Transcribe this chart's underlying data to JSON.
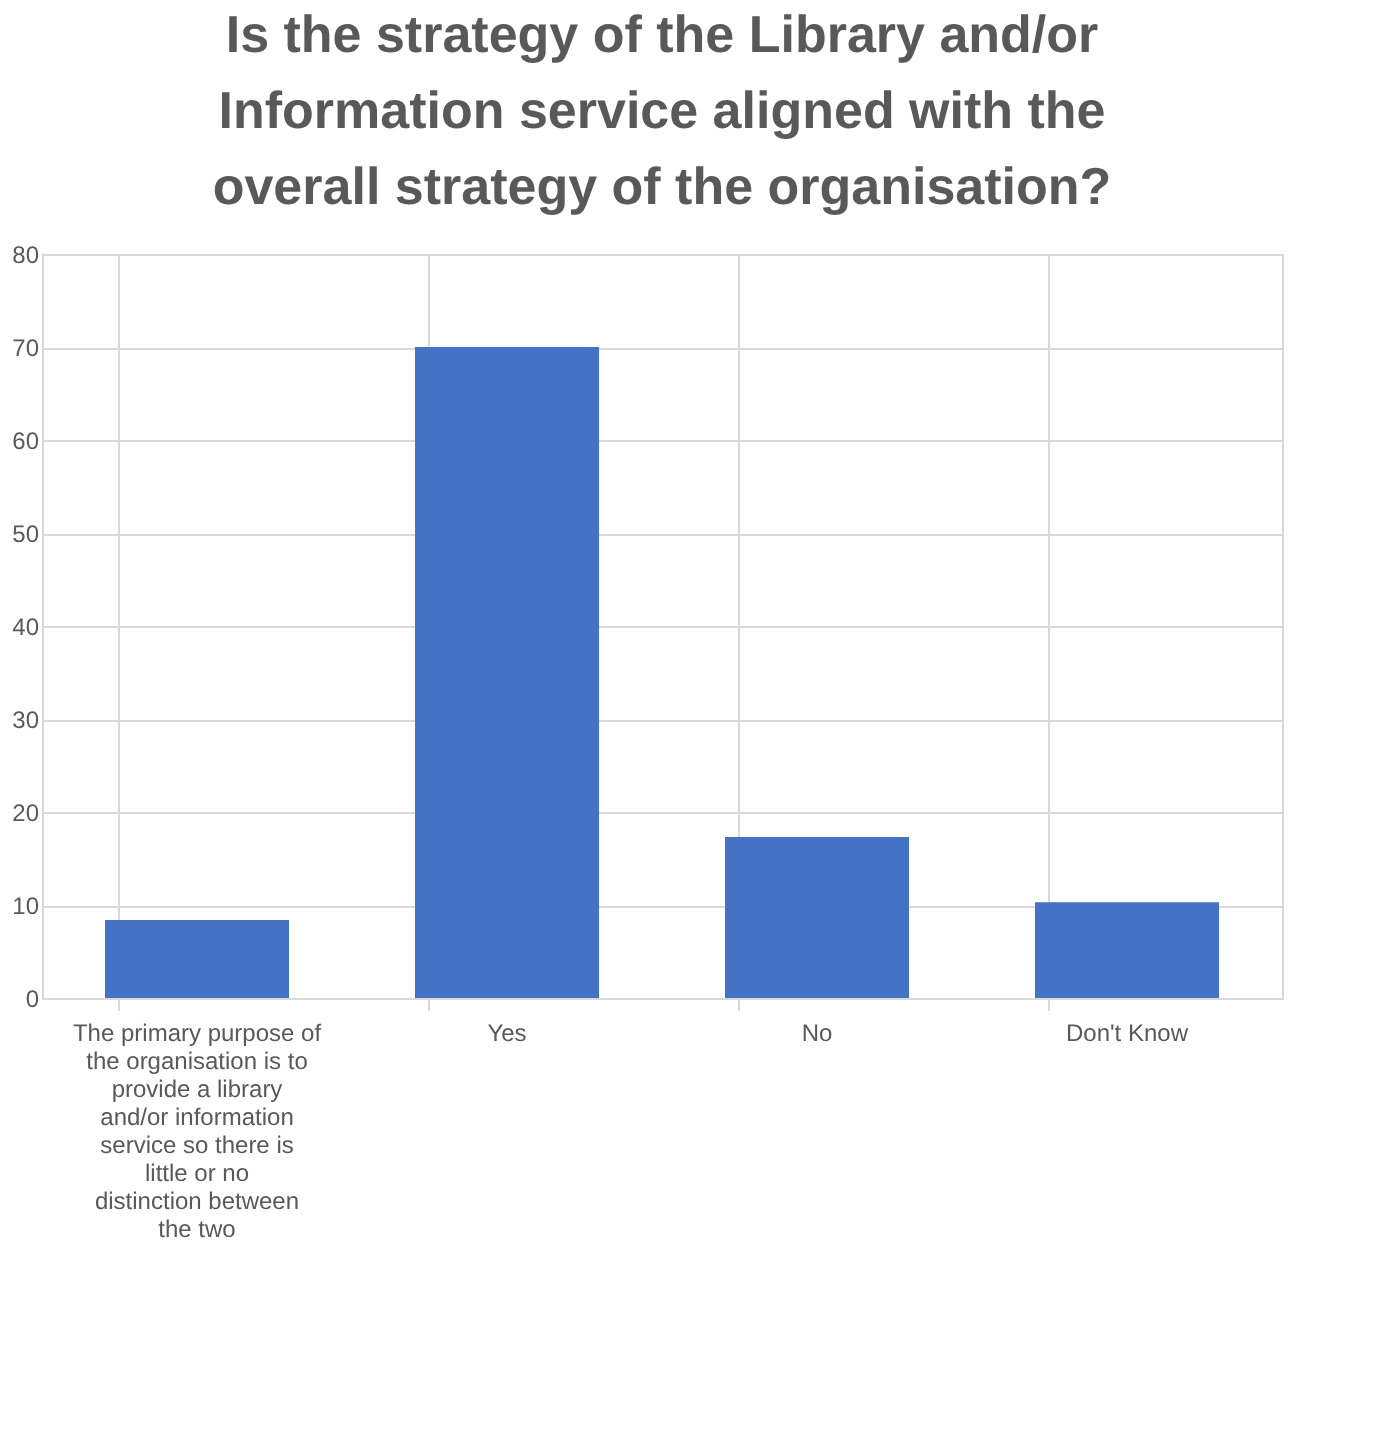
{
  "chart_data": {
    "type": "bar",
    "title": "Is the strategy of the Library and/or Information service aligned with the overall strategy of the organisation?",
    "categories": [
      "The primary purpose of the organisation is to provide a library and/or information service so there is little or no distinction between the two",
      "Yes",
      "No",
      "Don't Know"
    ],
    "values": [
      8.4,
      70,
      17.3,
      10.3
    ],
    "color": "#4472c4",
    "ylim": [
      0,
      80
    ],
    "yticks": [
      0,
      10,
      20,
      30,
      40,
      50,
      60,
      70,
      80
    ],
    "grid": true,
    "legend": false
  }
}
